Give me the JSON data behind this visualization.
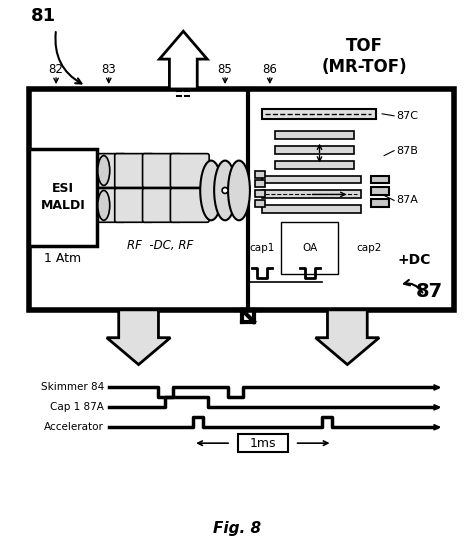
{
  "fig_label": "Fig. 8",
  "label_81": "81",
  "label_82": "82",
  "label_83": "83",
  "label_84": "84",
  "label_85": "85",
  "label_86": "86",
  "label_87": "87",
  "label_87A": "87A",
  "label_87B": "87B",
  "label_87C": "87C",
  "label_tof": "TOF\n(MR-TOF)",
  "label_esi": "ESI\nMALDI",
  "label_1atm": "1 Atm",
  "label_rf": "RF  -DC, RF",
  "label_cap1": "cap1",
  "label_oa": "OA",
  "label_cap2": "cap2",
  "label_dc": "+DC",
  "label_skimmer": "Skimmer 84",
  "label_cap1_87a": "Cap 1 87A",
  "label_accelerator": "Accelerator",
  "label_1ms": "1ms",
  "bg_color": "#ffffff",
  "line_color": "#000000"
}
